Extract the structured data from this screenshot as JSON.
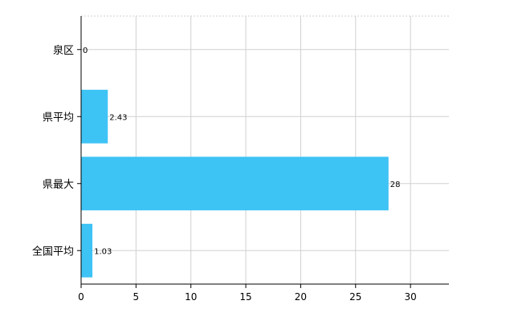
{
  "chart_data": {
    "type": "bar",
    "orientation": "horizontal",
    "categories": [
      "泉区",
      "県平均",
      "県最大",
      "全国平均"
    ],
    "values": [
      0,
      2.43,
      28,
      1.03
    ],
    "data_labels": [
      "0",
      "2.43",
      "28",
      "1.03"
    ],
    "x_ticks": [
      "0",
      "5",
      "10",
      "15",
      "20",
      "25",
      "30"
    ],
    "xlim": [
      0,
      33.5
    ],
    "grid": true,
    "legend": "none",
    "bar_color": "#3ec3f5",
    "title": "",
    "xlabel": "",
    "ylabel": ""
  }
}
